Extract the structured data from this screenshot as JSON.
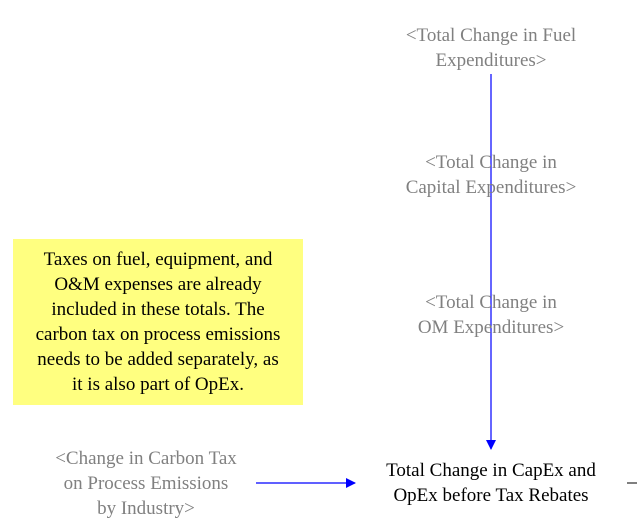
{
  "nodes": {
    "fuel": {
      "lines": [
        "<Total Change in Fuel",
        "Expenditures>"
      ]
    },
    "capital": {
      "lines": [
        "<Total Change in",
        "Capital Expenditures>"
      ]
    },
    "om": {
      "lines": [
        "<Total Change in",
        "OM Expenditures>"
      ]
    },
    "carbon_tax": {
      "lines": [
        "<Change in Carbon Tax",
        "on Process Emissions",
        "by Industry>"
      ]
    },
    "total": {
      "lines": [
        "Total Change in CapEx and",
        "OpEx before Tax Rebates"
      ]
    }
  },
  "note": {
    "lines": [
      "Taxes on fuel, equipment, and",
      "O&M expenses are already",
      "included in these totals.  The",
      "carbon tax on process emissions",
      "needs to be added separately, as",
      "it is also part of OpEx."
    ]
  },
  "colors": {
    "shadow_text": "#808080",
    "main_text": "#000000",
    "arrow": "#0000ff",
    "note_fill": "#ffff80"
  }
}
